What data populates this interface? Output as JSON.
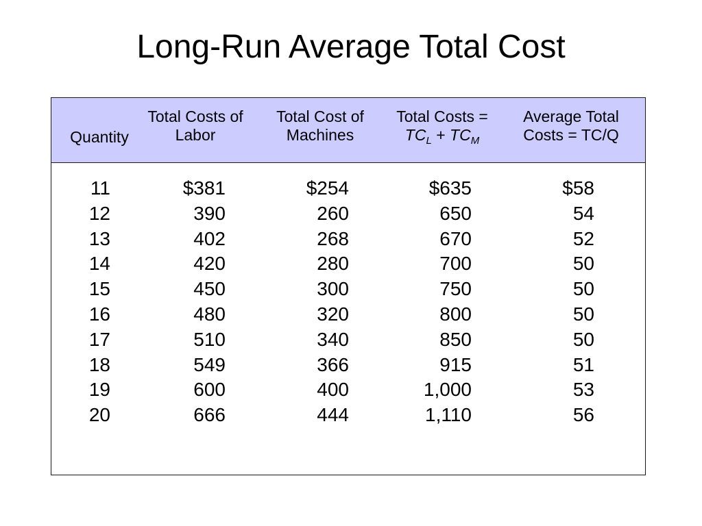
{
  "title": "Long-Run Average Total Cost",
  "colors": {
    "header_fill": "#ccccff",
    "border": "#1a1a1a"
  },
  "table": {
    "headers": {
      "quantity": "Quantity",
      "labor": [
        "Total Costs of",
        "Labor"
      ],
      "machines": [
        "Total Cost of",
        "Machines"
      ],
      "total": {
        "line1": "Total Costs =",
        "tc": "TC",
        "sub_l": "L",
        "plus": " + ",
        "sub_m": "M"
      },
      "average": [
        "Average Total",
        "Costs = TC/Q"
      ]
    },
    "rows": [
      {
        "quantity": "11",
        "labor": "$381",
        "machines": "$254",
        "total": "$635",
        "average": "$58"
      },
      {
        "quantity": "12",
        "labor": "390",
        "machines": "260",
        "total": "650",
        "average": "54"
      },
      {
        "quantity": "13",
        "labor": "402",
        "machines": "268",
        "total": "670",
        "average": "52"
      },
      {
        "quantity": "14",
        "labor": "420",
        "machines": "280",
        "total": "700",
        "average": "50"
      },
      {
        "quantity": "15",
        "labor": "450",
        "machines": "300",
        "total": "750",
        "average": "50"
      },
      {
        "quantity": "16",
        "labor": "480",
        "machines": "320",
        "total": "800",
        "average": "50"
      },
      {
        "quantity": "17",
        "labor": "510",
        "machines": "340",
        "total": "850",
        "average": "50"
      },
      {
        "quantity": "18",
        "labor": "549",
        "machines": "366",
        "total": "915",
        "average": "51"
      },
      {
        "quantity": "19",
        "labor": "600",
        "machines": "400",
        "total": "1,000",
        "average": "53"
      },
      {
        "quantity": "20",
        "labor": "666",
        "machines": "444",
        "total": "1,110",
        "average": "56"
      }
    ]
  }
}
